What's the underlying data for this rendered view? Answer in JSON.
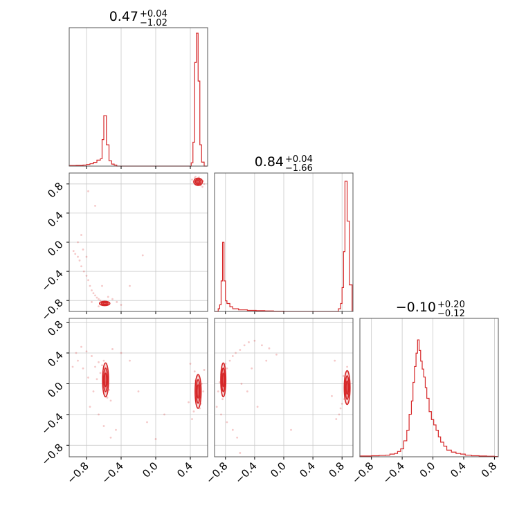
{
  "colors": {
    "series": "#d62728",
    "grid": "#c8c8c8",
    "frame": "#000000"
  },
  "tick_values": [
    -0.8,
    -0.4,
    0.0,
    0.4,
    0.8
  ],
  "tick_labels": [
    "−0.8",
    "−0.4",
    "0.0",
    "0.4",
    "0.8"
  ],
  "chart_data": [
    {
      "type": "histogram",
      "panel": "row0-col0",
      "title": {
        "value": "0.47",
        "plus": "+0.04",
        "minus": "−1.02"
      },
      "x_range": [
        -1.0,
        0.6
      ],
      "grid": true,
      "bins": [
        [
          -1.0,
          0.005
        ],
        [
          -0.96,
          0.005
        ],
        [
          -0.92,
          0.006
        ],
        [
          -0.88,
          0.006
        ],
        [
          -0.84,
          0.008
        ],
        [
          -0.8,
          0.012
        ],
        [
          -0.76,
          0.018
        ],
        [
          -0.72,
          0.028
        ],
        [
          -0.68,
          0.045
        ],
        [
          -0.64,
          0.055
        ],
        [
          -0.62,
          0.2
        ],
        [
          -0.6,
          0.38
        ],
        [
          -0.57,
          0.16
        ],
        [
          -0.54,
          0.04
        ],
        [
          -0.51,
          0.015
        ],
        [
          -0.48,
          0.008
        ],
        [
          -0.45,
          0.0
        ],
        [
          0.38,
          0.0
        ],
        [
          0.41,
          0.025
        ],
        [
          0.43,
          0.18
        ],
        [
          0.45,
          0.78
        ],
        [
          0.47,
          1.0
        ],
        [
          0.49,
          0.64
        ],
        [
          0.51,
          0.16
        ],
        [
          0.53,
          0.03
        ],
        [
          0.56,
          0.0
        ]
      ]
    },
    {
      "type": "histogram",
      "panel": "row1-col1",
      "title": {
        "value": "0.84",
        "plus": "+0.04",
        "minus": "−1.66"
      },
      "x_range": [
        -0.95,
        0.95
      ],
      "grid": true,
      "bins": [
        [
          -0.95,
          0.0
        ],
        [
          -0.9,
          0.02
        ],
        [
          -0.88,
          0.05
        ],
        [
          -0.86,
          0.23
        ],
        [
          -0.84,
          0.52
        ],
        [
          -0.82,
          0.23
        ],
        [
          -0.8,
          0.08
        ],
        [
          -0.78,
          0.06
        ],
        [
          -0.74,
          0.035
        ],
        [
          -0.7,
          0.02
        ],
        [
          -0.62,
          0.012
        ],
        [
          -0.5,
          0.008
        ],
        [
          -0.38,
          0.006
        ],
        [
          -0.26,
          0.004
        ],
        [
          -0.14,
          0.002
        ],
        [
          0.0,
          0.0
        ],
        [
          0.72,
          0.0
        ],
        [
          0.75,
          0.02
        ],
        [
          0.78,
          0.06
        ],
        [
          0.8,
          0.18
        ],
        [
          0.82,
          0.45
        ],
        [
          0.84,
          0.98
        ],
        [
          0.87,
          0.68
        ],
        [
          0.9,
          0.2
        ]
      ]
    },
    {
      "type": "histogram",
      "panel": "row2-col2",
      "title": {
        "value": "−0.10",
        "plus": "+0.20",
        "minus": "−0.12"
      },
      "x_range": [
        -0.95,
        0.85
      ],
      "grid": true,
      "bins": [
        [
          -0.95,
          0.006
        ],
        [
          -0.88,
          0.006
        ],
        [
          -0.8,
          0.008
        ],
        [
          -0.7,
          0.01
        ],
        [
          -0.62,
          0.012
        ],
        [
          -0.56,
          0.02
        ],
        [
          -0.5,
          0.025
        ],
        [
          -0.46,
          0.04
        ],
        [
          -0.42,
          0.06
        ],
        [
          -0.38,
          0.12
        ],
        [
          -0.34,
          0.2
        ],
        [
          -0.31,
          0.32
        ],
        [
          -0.28,
          0.42
        ],
        [
          -0.26,
          0.56
        ],
        [
          -0.24,
          0.68
        ],
        [
          -0.22,
          0.78
        ],
        [
          -0.2,
          0.88
        ],
        [
          -0.18,
          0.8
        ],
        [
          -0.16,
          0.72
        ],
        [
          -0.14,
          0.66
        ],
        [
          -0.12,
          0.6
        ],
        [
          -0.1,
          0.52
        ],
        [
          -0.08,
          0.44
        ],
        [
          -0.05,
          0.34
        ],
        [
          -0.02,
          0.28
        ],
        [
          0.01,
          0.24
        ],
        [
          0.04,
          0.2
        ],
        [
          0.07,
          0.15
        ],
        [
          0.1,
          0.11
        ],
        [
          0.14,
          0.08
        ],
        [
          0.18,
          0.05
        ],
        [
          0.24,
          0.035
        ],
        [
          0.3,
          0.025
        ],
        [
          0.36,
          0.02
        ],
        [
          0.42,
          0.012
        ],
        [
          0.5,
          0.008
        ],
        [
          0.6,
          0.006
        ],
        [
          0.7,
          0.004
        ],
        [
          0.8,
          0.002
        ]
      ]
    },
    {
      "type": "scatter",
      "panel": "row1-col0",
      "x_range": [
        -1.0,
        0.6
      ],
      "y_range": [
        -0.95,
        0.95
      ],
      "grid": true,
      "points": [
        [
          0.45,
          0.88
        ],
        [
          0.47,
          0.85
        ],
        [
          0.49,
          0.82
        ],
        [
          0.51,
          0.8
        ],
        [
          0.53,
          0.86
        ],
        [
          0.44,
          0.83
        ],
        [
          0.5,
          0.89
        ],
        [
          0.52,
          0.78
        ],
        [
          0.48,
          0.79
        ],
        [
          0.55,
          0.84
        ],
        [
          0.46,
          0.9
        ],
        [
          0.54,
          0.76
        ],
        [
          0.42,
          0.86
        ],
        [
          0.56,
          0.8
        ],
        [
          -0.6,
          -0.84
        ],
        [
          -0.62,
          -0.82
        ],
        [
          -0.58,
          -0.86
        ],
        [
          -0.64,
          -0.8
        ],
        [
          -0.66,
          -0.78
        ],
        [
          -0.56,
          -0.86
        ],
        [
          -0.68,
          -0.76
        ],
        [
          -0.7,
          -0.73
        ],
        [
          -0.72,
          -0.7
        ],
        [
          -0.74,
          -0.66
        ],
        [
          -0.76,
          -0.6
        ],
        [
          -0.78,
          -0.52
        ],
        [
          -0.8,
          -0.46
        ],
        [
          -0.83,
          -0.4
        ],
        [
          -0.86,
          -0.33
        ],
        [
          -0.88,
          -0.25
        ],
        [
          -0.9,
          -0.2
        ],
        [
          -0.93,
          -0.16
        ],
        [
          -0.95,
          -0.12
        ],
        [
          -0.8,
          -0.2
        ],
        [
          -0.84,
          -0.1
        ],
        [
          -0.9,
          0.0
        ],
        [
          -0.86,
          0.1
        ],
        [
          -0.7,
          0.5
        ],
        [
          -0.78,
          0.7
        ],
        [
          -0.62,
          -0.6
        ],
        [
          -0.55,
          -0.75
        ],
        [
          -0.5,
          -0.78
        ],
        [
          -0.45,
          -0.82
        ],
        [
          -0.4,
          -0.86
        ],
        [
          -0.15,
          -0.18
        ],
        [
          -0.3,
          -0.6
        ],
        [
          -0.74,
          -0.82
        ],
        [
          -0.66,
          -0.88
        ]
      ]
    },
    {
      "type": "scatter",
      "panel": "row2-col0",
      "x_range": [
        -1.0,
        0.6
      ],
      "y_range": [
        -0.95,
        0.85
      ],
      "grid": true,
      "points": [
        [
          -0.62,
          0.24
        ],
        [
          -0.58,
          0.2
        ],
        [
          -0.55,
          0.12
        ],
        [
          -0.57,
          0.02
        ],
        [
          -0.54,
          -0.08
        ],
        [
          -0.56,
          -0.18
        ],
        [
          -0.6,
          0.3
        ],
        [
          -0.66,
          0.28
        ],
        [
          -0.7,
          0.22
        ],
        [
          -0.52,
          -0.22
        ],
        [
          -0.64,
          0.14
        ],
        [
          -0.68,
          0.06
        ],
        [
          -0.74,
          0.36
        ],
        [
          -0.8,
          0.42
        ],
        [
          -0.86,
          0.48
        ],
        [
          -0.92,
          0.4
        ],
        [
          -0.9,
          0.3
        ],
        [
          -0.96,
          0.22
        ],
        [
          -0.84,
          0.2
        ],
        [
          -0.78,
          0.08
        ],
        [
          -0.72,
          -0.1
        ],
        [
          -0.76,
          -0.3
        ],
        [
          -0.66,
          -0.4
        ],
        [
          -0.6,
          -0.55
        ],
        [
          -0.52,
          -0.7
        ],
        [
          -0.46,
          -0.6
        ],
        [
          -0.5,
          0.45
        ],
        [
          -0.4,
          0.4
        ],
        [
          -0.3,
          0.3
        ],
        [
          -0.2,
          -0.1
        ],
        [
          -0.1,
          -0.5
        ],
        [
          0.0,
          -0.72
        ],
        [
          0.1,
          -0.4
        ],
        [
          0.46,
          0.04
        ],
        [
          0.48,
          -0.06
        ],
        [
          0.5,
          -0.16
        ],
        [
          0.52,
          -0.26
        ],
        [
          0.49,
          0.1
        ],
        [
          0.51,
          -0.32
        ],
        [
          0.47,
          -0.2
        ],
        [
          0.53,
          0.0
        ],
        [
          0.45,
          0.16
        ],
        [
          0.44,
          -0.36
        ],
        [
          0.42,
          -0.46
        ],
        [
          0.55,
          -0.1
        ],
        [
          0.56,
          0.18
        ],
        [
          0.4,
          0.26
        ],
        [
          0.38,
          -0.24
        ]
      ]
    },
    {
      "type": "scatter",
      "panel": "row2-col1",
      "x_range": [
        -0.95,
        0.95
      ],
      "y_range": [
        -0.95,
        0.85
      ],
      "grid": true,
      "points": [
        [
          -0.84,
          0.2
        ],
        [
          -0.82,
          0.1
        ],
        [
          -0.83,
          0.0
        ],
        [
          -0.81,
          -0.1
        ],
        [
          -0.84,
          -0.2
        ],
        [
          -0.8,
          0.26
        ],
        [
          -0.78,
          0.2
        ],
        [
          -0.86,
          0.12
        ],
        [
          -0.88,
          0.02
        ],
        [
          -0.74,
          0.3
        ],
        [
          -0.7,
          0.36
        ],
        [
          -0.66,
          0.4
        ],
        [
          -0.6,
          0.44
        ],
        [
          -0.54,
          0.5
        ],
        [
          -0.48,
          0.54
        ],
        [
          -0.4,
          0.56
        ],
        [
          -0.3,
          0.5
        ],
        [
          -0.2,
          0.46
        ],
        [
          -0.9,
          -0.1
        ],
        [
          -0.92,
          -0.3
        ],
        [
          -0.86,
          -0.4
        ],
        [
          -0.78,
          -0.5
        ],
        [
          -0.7,
          -0.6
        ],
        [
          -0.64,
          -0.7
        ],
        [
          -0.58,
          0.0
        ],
        [
          -0.5,
          -0.1
        ],
        [
          -0.44,
          0.2
        ],
        [
          -0.36,
          -0.3
        ],
        [
          -0.24,
          0.3
        ],
        [
          -0.1,
          0.38
        ],
        [
          0.1,
          -0.6
        ],
        [
          -0.6,
          -0.9
        ],
        [
          0.82,
          0.1
        ],
        [
          0.84,
          0.0
        ],
        [
          0.86,
          -0.1
        ],
        [
          0.88,
          0.16
        ],
        [
          0.83,
          -0.2
        ],
        [
          0.8,
          -0.26
        ],
        [
          0.78,
          -0.32
        ],
        [
          0.76,
          -0.4
        ],
        [
          0.87,
          0.22
        ],
        [
          0.72,
          -0.46
        ],
        [
          0.9,
          -0.04
        ],
        [
          0.7,
          0.3
        ],
        [
          0.66,
          -0.16
        ]
      ]
    }
  ]
}
